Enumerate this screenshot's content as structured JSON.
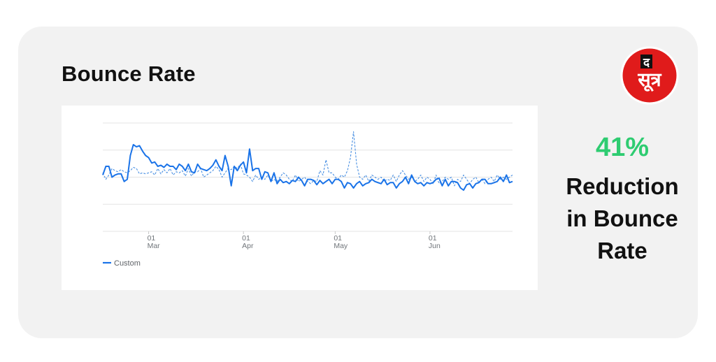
{
  "card": {
    "title": "Bounce Rate"
  },
  "logo": {
    "text_top": "द",
    "text_main": "सूत्र",
    "color": "#e01b1b"
  },
  "stat": {
    "value": "41%",
    "label_lines": [
      "Reduction",
      "in Bounce",
      "Rate"
    ],
    "value_color": "#2ecc71"
  },
  "chart_data": {
    "type": "line",
    "x_ticks": [
      {
        "day": "01",
        "month": "Mar",
        "index": 15
      },
      {
        "day": "01",
        "month": "Apr",
        "index": 46
      },
      {
        "day": "01",
        "month": "May",
        "index": 76
      },
      {
        "day": "01",
        "month": "Jun",
        "index": 107
      }
    ],
    "ylim": [
      0,
      100
    ],
    "grid": true,
    "legend": "bottom-left",
    "series": [
      {
        "name": "Custom",
        "style": "solid",
        "color": "#1a73e8",
        "values": [
          52,
          60,
          60,
          50,
          52,
          53,
          53,
          46,
          48,
          70,
          80,
          78,
          79,
          74,
          70,
          68,
          63,
          64,
          60,
          61,
          59,
          62,
          60,
          60,
          57,
          62,
          60,
          56,
          62,
          55,
          54,
          62,
          58,
          57,
          56,
          58,
          61,
          66,
          60,
          56,
          70,
          60,
          42,
          60,
          56,
          61,
          64,
          54,
          76,
          56,
          58,
          58,
          48,
          55,
          54,
          46,
          54,
          44,
          48,
          45,
          46,
          44,
          47,
          46,
          50,
          47,
          42,
          48,
          48,
          47,
          43,
          47,
          44,
          46,
          48,
          44,
          48,
          48,
          46,
          40,
          45,
          44,
          40,
          44,
          46,
          42,
          44,
          45,
          48,
          46,
          45,
          44,
          48,
          43,
          45,
          45,
          40,
          44,
          46,
          50,
          44,
          52,
          46,
          44,
          45,
          42,
          45,
          44,
          45,
          48,
          49,
          42,
          48,
          42,
          46,
          46,
          45,
          40,
          38,
          43,
          44,
          40,
          44,
          45,
          48,
          48,
          44,
          44,
          45,
          46,
          50,
          46,
          52,
          45,
          46
        ]
      },
      {
        "name": "",
        "style": "dashed",
        "color": "#4a90e2",
        "values": [
          54,
          48,
          52,
          58,
          56,
          55,
          57,
          55,
          54,
          56,
          59,
          58,
          53,
          54,
          53,
          54,
          55,
          52,
          58,
          53,
          57,
          54,
          58,
          52,
          55,
          54,
          56,
          51,
          58,
          51,
          55,
          55,
          58,
          50,
          52,
          54,
          56,
          60,
          57,
          50,
          54,
          58,
          57,
          60,
          58,
          62,
          53,
          52,
          50,
          46,
          52,
          48,
          50,
          48,
          52,
          46,
          48,
          46,
          50,
          54,
          52,
          48,
          46,
          52,
          46,
          48,
          50,
          46,
          44,
          47,
          46,
          56,
          52,
          66,
          54,
          54,
          50,
          48,
          52,
          50,
          56,
          68,
          92,
          62,
          50,
          48,
          52,
          46,
          52,
          50,
          48,
          50,
          46,
          48,
          47,
          52,
          46,
          52,
          56,
          52,
          48,
          50,
          46,
          48,
          52,
          46,
          50,
          48,
          44,
          52,
          44,
          46,
          50,
          48,
          50,
          42,
          48,
          46,
          52,
          48,
          44,
          48,
          50,
          45,
          48,
          44,
          48,
          50,
          46,
          52,
          48,
          50,
          48,
          50,
          52
        ]
      }
    ]
  }
}
